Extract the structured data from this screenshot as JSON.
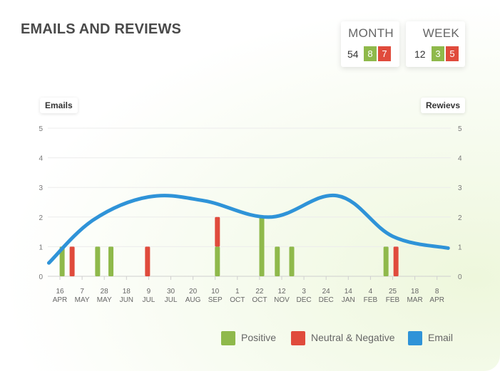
{
  "title": "EMAILS AND REVIEWS",
  "summary": {
    "month": {
      "label": "MONTH",
      "total": "54",
      "positive": "8",
      "negative": "7"
    },
    "week": {
      "label": "WEEK",
      "total": "12",
      "positive": "3",
      "negative": "5"
    }
  },
  "colors": {
    "positive": "#8fb94b",
    "negative": "#e04b3c",
    "email": "#2f93d8"
  },
  "chart_data": {
    "type": "bar",
    "ylabel_left": "Emails",
    "ylabel_right": "Rewievs",
    "ylim": [
      0,
      5
    ],
    "yticks": [
      0,
      1,
      2,
      3,
      4,
      5
    ],
    "x_day_labels": [
      "16",
      "7",
      "28",
      "18",
      "9",
      "30",
      "20",
      "10",
      "1",
      "22",
      "12",
      "3",
      "24",
      "14",
      "4",
      "25",
      "18",
      "8"
    ],
    "x_month_labels": [
      "APR",
      "MAY",
      "MAY",
      "JUN",
      "JUL",
      "JUL",
      "AUG",
      "SEP",
      "OCT",
      "OCT",
      "NOV",
      "DEC",
      "DEC",
      "JAN",
      "FEB",
      "FEB",
      "MAR",
      "APR"
    ],
    "series": [
      {
        "name": "Positive",
        "kind": "bar",
        "values": [
          {
            "x": 0.1,
            "y": 1
          },
          {
            "x": 1.7,
            "y": 1
          },
          {
            "x": 2.3,
            "y": 1
          },
          {
            "x": 7.1,
            "y": 1
          },
          {
            "x": 9.1,
            "y": 2
          },
          {
            "x": 9.8,
            "y": 1
          },
          {
            "x": 10.45,
            "y": 1
          },
          {
            "x": 14.7,
            "y": 1
          }
        ]
      },
      {
        "name": "Neutral & Negative",
        "kind": "bar",
        "values": [
          {
            "x": 0.55,
            "y": 1
          },
          {
            "x": 3.95,
            "y": 1
          },
          {
            "x": 7.1,
            "y": 1
          },
          {
            "x": 15.15,
            "y": 1
          }
        ]
      },
      {
        "name": "Email",
        "kind": "line",
        "values": [
          {
            "x": -0.5,
            "y": 0.45
          },
          {
            "x": 1.5,
            "y": 1.9
          },
          {
            "x": 4.0,
            "y": 2.68
          },
          {
            "x": 6.5,
            "y": 2.55
          },
          {
            "x": 9.5,
            "y": 2.0
          },
          {
            "x": 12.5,
            "y": 2.72
          },
          {
            "x": 15.0,
            "y": 1.35
          },
          {
            "x": 17.5,
            "y": 0.95
          }
        ]
      }
    ],
    "legend": [
      {
        "name": "Positive",
        "color": "#8fb94b"
      },
      {
        "name": "Neutral & Negative",
        "color": "#e04b3c"
      },
      {
        "name": "Email",
        "color": "#2f93d8"
      }
    ],
    "grid": true,
    "legend_position": "bottom-right"
  }
}
